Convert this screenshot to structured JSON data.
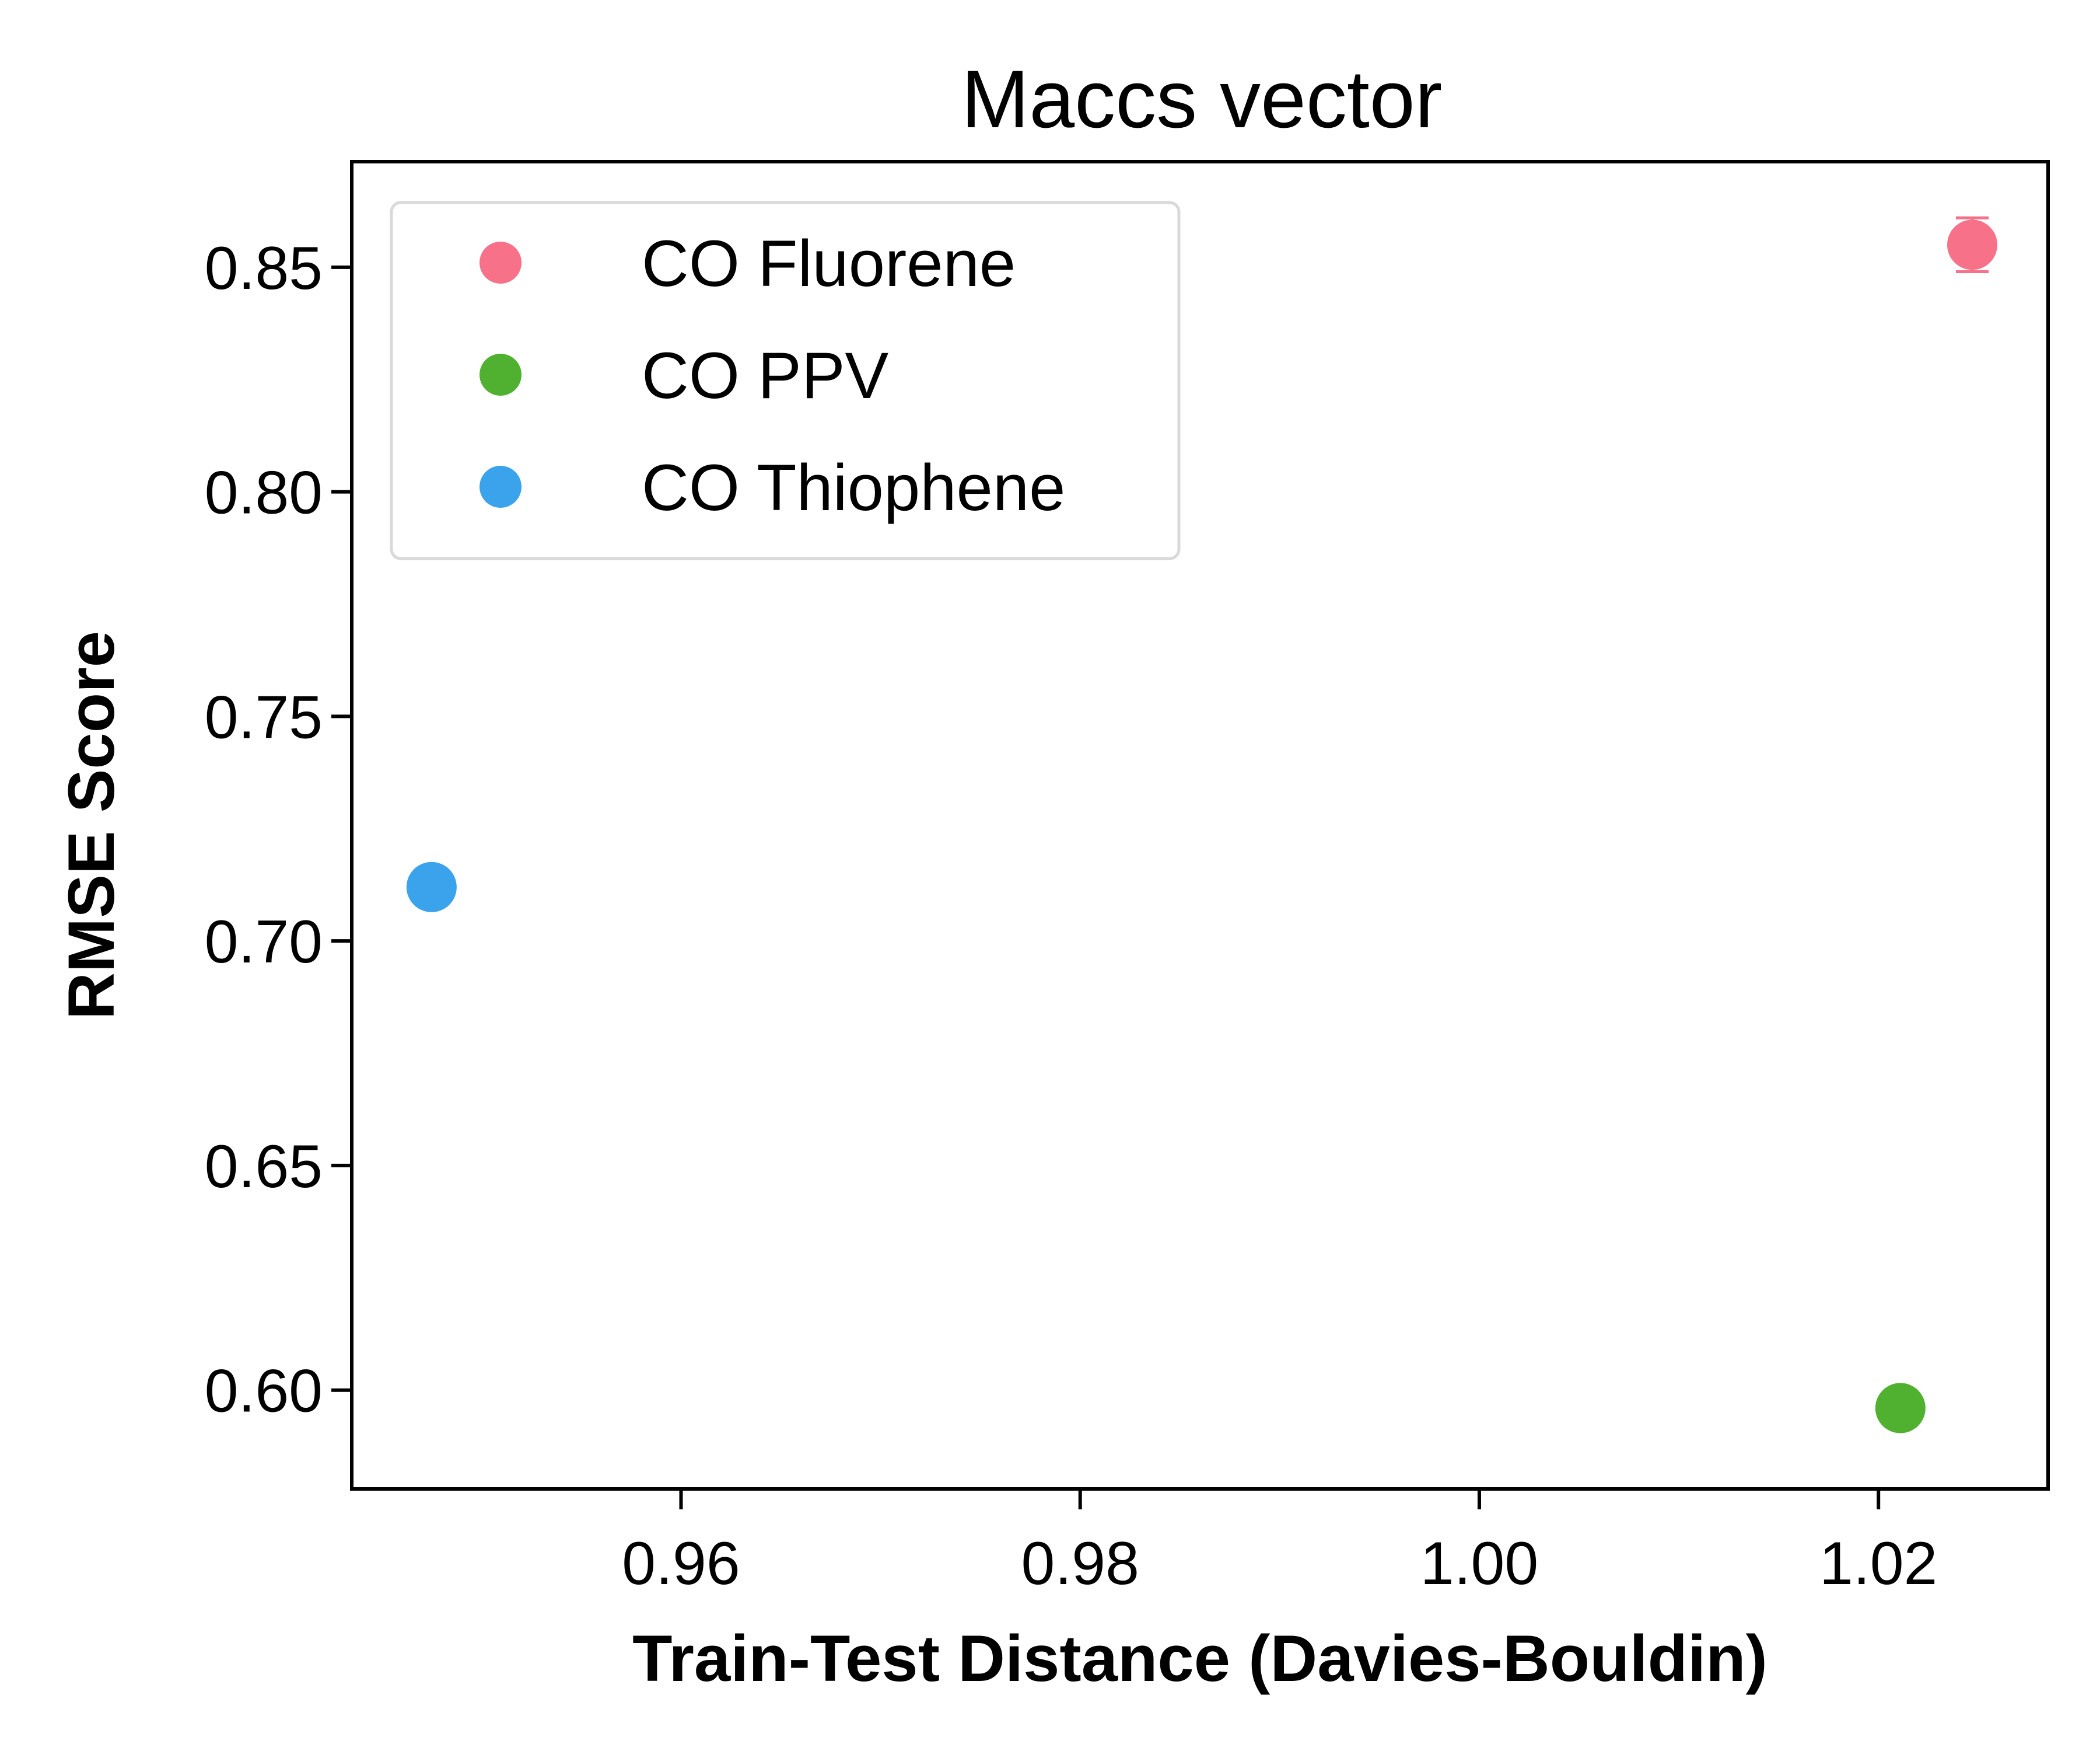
{
  "chart_data": {
    "type": "scatter",
    "title": "Maccs vector",
    "xlabel": "Train-Test Distance (Davies-Bouldin)",
    "ylabel": "RMSE Score",
    "xlim": [
      0.9435,
      1.0285
    ],
    "ylim": [
      0.578,
      0.8735
    ],
    "xticks": [
      0.96,
      0.98,
      1.0,
      1.02
    ],
    "xtick_labels": [
      "0.96",
      "0.98",
      "1.00",
      "1.02"
    ],
    "yticks": [
      0.6,
      0.65,
      0.7,
      0.75,
      0.8,
      0.85
    ],
    "ytick_labels": [
      "0.60",
      "0.65",
      "0.70",
      "0.75",
      "0.80",
      "0.85"
    ],
    "grid": false,
    "legend_position": "upper-left",
    "series": [
      {
        "name": "CO Fluorene",
        "color": "#f77189",
        "points": [
          {
            "x": 1.0247,
            "y": 0.855,
            "yerr": 0.006
          }
        ]
      },
      {
        "name": "CO PPV",
        "color": "#50b131",
        "points": [
          {
            "x": 1.0211,
            "y": 0.596,
            "yerr": 0.004
          }
        ]
      },
      {
        "name": "CO Thiophene",
        "color": "#3ba3ec",
        "points": [
          {
            "x": 0.9475,
            "y": 0.712,
            "yerr": 0.004
          }
        ]
      }
    ]
  }
}
